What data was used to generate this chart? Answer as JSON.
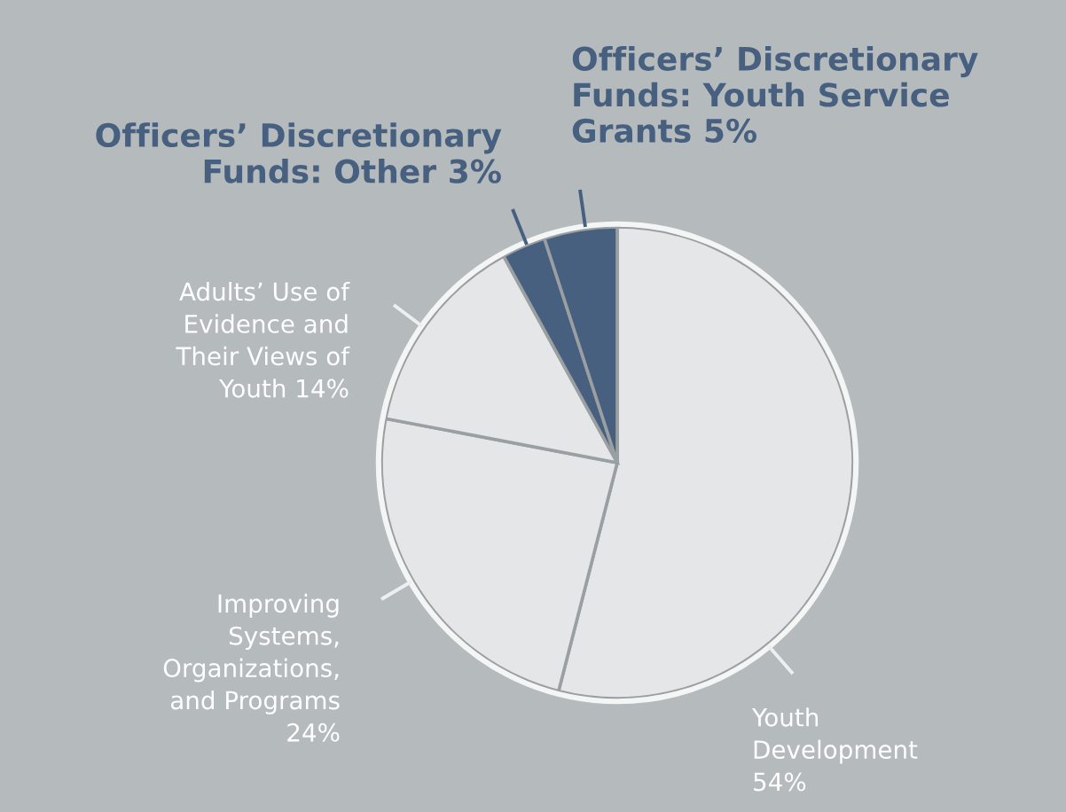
{
  "chart_data": {
    "type": "pie",
    "categories": [
      "Youth\nDevelopment\n54%",
      "Improving\nSystems,\nOrganizations,\nand Programs\n24%",
      "Adults’ Use of\nEvidence and\nTheir Views of\nYouth 14%",
      "Officers’ Discretionary\nFunds: Other 3%",
      "Officers’ Discretionary\nFunds: Youth Service\nGrants 5%"
    ],
    "values": [
      54,
      24,
      14,
      3,
      5
    ],
    "colors": [
      "#e4e6e7",
      "#e4e6e7",
      "#e4e6e7",
      "#47607f",
      "#47607f"
    ]
  }
}
